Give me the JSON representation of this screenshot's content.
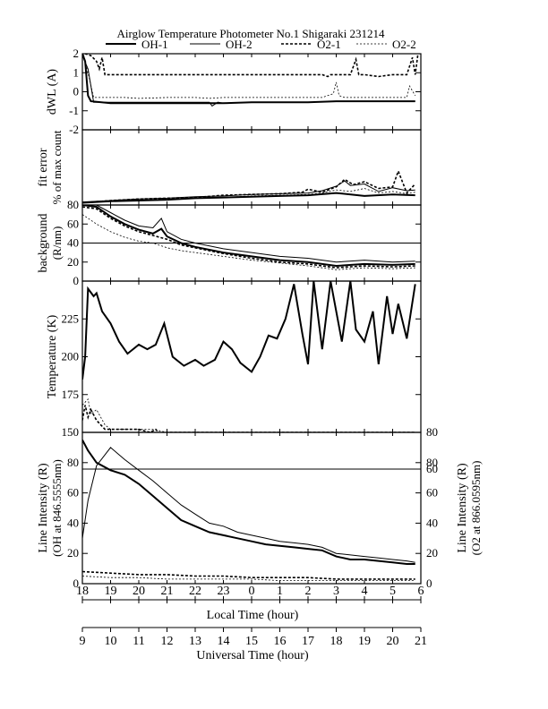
{
  "title": "Airglow Temperature Photometer No.1  Shigaraki  231214",
  "legend": [
    {
      "name": "OH-1",
      "style": "solid-thick"
    },
    {
      "name": "OH-2",
      "style": "solid-thin"
    },
    {
      "name": "O2-1",
      "style": "dashed-thick"
    },
    {
      "name": "O2-2",
      "style": "dashed-thin"
    }
  ],
  "xaxis_top": {
    "label": "Local Time (hour)",
    "ticks": [
      "18",
      "19",
      "20",
      "21",
      "22",
      "23",
      "0",
      "1",
      "2",
      "3",
      "4",
      "5",
      "6"
    ]
  },
  "xaxis_bottom": {
    "label": "Universal Time (hour)",
    "ticks": [
      "9",
      "10",
      "11",
      "12",
      "13",
      "14",
      "15",
      "16",
      "17",
      "18",
      "19",
      "20",
      "21"
    ]
  },
  "chart_data": [
    {
      "type": "line",
      "ylabel": "dWL (A)",
      "ylim": [
        -2,
        2
      ],
      "yticks": [
        "-2",
        "-1",
        "0",
        "1",
        "2"
      ],
      "x_unit": "universal time (hour)",
      "series": [
        {
          "name": "OH-1",
          "x": [
            9.0,
            9.1,
            9.2,
            9.3,
            10,
            11,
            12,
            13,
            13.5,
            14,
            15,
            16,
            17,
            18,
            19,
            20,
            20.8
          ],
          "y": [
            2.0,
            1.6,
            -0.2,
            -0.5,
            -0.6,
            -0.6,
            -0.6,
            -0.6,
            -0.6,
            -0.6,
            -0.55,
            -0.55,
            -0.55,
            -0.5,
            -0.5,
            -0.5,
            -0.5
          ]
        },
        {
          "name": "O2-1",
          "x": [
            9.0,
            9.1,
            9.3,
            9.5,
            9.6,
            9.7,
            9.8,
            10,
            11,
            12,
            13,
            14,
            15,
            16,
            17,
            17.5,
            17.7,
            17.8,
            18,
            18.5,
            18.7,
            18.8,
            19,
            19.5,
            20,
            20.5,
            20.7,
            20.8,
            20.9
          ],
          "y": [
            1.8,
            2.0,
            1.9,
            1.6,
            1.2,
            1.8,
            0.9,
            0.9,
            0.9,
            0.9,
            0.9,
            0.9,
            0.9,
            0.9,
            0.9,
            0.9,
            0.8,
            0.9,
            0.9,
            0.9,
            1.7,
            0.9,
            0.9,
            0.8,
            0.9,
            0.9,
            1.8,
            0.9,
            2.0
          ]
        },
        {
          "name": "O2-2",
          "x": [
            9.0,
            9.2,
            9.4,
            9.6,
            10,
            10.5,
            11,
            12,
            13,
            13.5,
            14,
            15,
            16,
            17,
            17.5,
            17.9,
            18,
            18.1,
            18.3,
            18.5,
            19,
            20,
            20.5,
            20.6,
            20.8
          ],
          "y": [
            2.0,
            1.0,
            -0.3,
            -0.3,
            -0.3,
            -0.3,
            -0.35,
            -0.3,
            -0.3,
            -0.35,
            -0.3,
            -0.3,
            -0.3,
            -0.3,
            -0.3,
            -0.1,
            0.5,
            -0.2,
            -0.3,
            -0.3,
            -0.3,
            -0.3,
            -0.3,
            0.3,
            -0.2
          ]
        },
        {
          "name": "OH-2",
          "x": [
            9.0,
            9.2,
            9.4,
            10,
            11,
            12,
            13,
            13.5,
            13.6,
            13.8,
            14,
            15,
            16,
            17,
            18,
            19,
            20,
            20.8
          ],
          "y": [
            1.9,
            1.2,
            -0.55,
            -0.55,
            -0.55,
            -0.55,
            -0.55,
            -0.55,
            -0.75,
            -0.55,
            -0.6,
            -0.55,
            -0.55,
            -0.55,
            -0.5,
            -0.5,
            -0.5,
            -0.5
          ]
        }
      ]
    },
    {
      "type": "line",
      "ylabel": "fit error",
      "ylabel2": "% of max count",
      "ylim": [
        0,
        10
      ],
      "yticks": [],
      "x_unit": "universal time (hour)",
      "series": [
        {
          "name": "OH-1",
          "x": [
            9,
            10,
            11,
            12,
            13,
            14,
            15,
            16,
            17,
            18,
            19,
            20,
            20.8
          ],
          "y": [
            0.3,
            0.5,
            0.6,
            0.7,
            0.9,
            1.0,
            1.1,
            1.2,
            1.3,
            1.6,
            1.2,
            1.4,
            1.3
          ]
        },
        {
          "name": "OH-2",
          "x": [
            9,
            10,
            11,
            12,
            13,
            14,
            15,
            16,
            17,
            17.5,
            18,
            18.3,
            18.5,
            19,
            19.5,
            20,
            20.5,
            20.8
          ],
          "y": [
            0.4,
            0.6,
            0.8,
            0.9,
            1.1,
            1.2,
            1.4,
            1.5,
            1.6,
            1.9,
            2.5,
            3.2,
            2.6,
            2.8,
            1.8,
            2.3,
            1.9,
            2.0
          ]
        },
        {
          "name": "O2-1",
          "x": [
            9,
            10,
            11,
            12,
            13,
            14,
            15,
            16,
            16.8,
            17,
            17.5,
            18,
            18.3,
            18.6,
            19,
            19.5,
            20,
            20.2,
            20.5,
            20.8
          ],
          "y": [
            0.3,
            0.6,
            0.8,
            0.9,
            1.0,
            1.3,
            1.4,
            1.5,
            1.7,
            2.1,
            1.7,
            2.4,
            3.4,
            2.7,
            3.1,
            2.2,
            2.4,
            4.5,
            1.6,
            2.8
          ]
        },
        {
          "name": "O2-2",
          "x": [
            9,
            10,
            11,
            12,
            13,
            14,
            15,
            16,
            17,
            17.5,
            18,
            18.5,
            19,
            19.5,
            20,
            20.5,
            20.8
          ],
          "y": [
            0.3,
            0.5,
            0.6,
            0.8,
            0.9,
            1.0,
            1.2,
            1.3,
            1.4,
            1.6,
            2.0,
            1.8,
            2.2,
            1.6,
            1.8,
            1.5,
            1.7
          ]
        }
      ]
    },
    {
      "type": "line",
      "ylabel": "background",
      "ylabel2": "(R/nm)",
      "ylim": [
        0,
        80
      ],
      "yticks": [
        "0",
        "20",
        "40",
        "60",
        "80"
      ],
      "x_unit": "universal time (hour)",
      "series": [
        {
          "name": "OH-1",
          "x": [
            9,
            9.5,
            10,
            10.5,
            11,
            11.5,
            11.8,
            12,
            12.5,
            13,
            14,
            15,
            16,
            17,
            18,
            19,
            20,
            20.8
          ],
          "y": [
            80,
            78,
            68,
            60,
            54,
            50,
            55,
            47,
            40,
            36,
            30,
            26,
            22,
            20,
            16,
            18,
            17,
            18
          ]
        },
        {
          "name": "OH-2",
          "x": [
            9,
            9.5,
            10,
            10.5,
            11,
            11.5,
            11.8,
            12,
            12.5,
            13,
            14,
            15,
            16,
            17,
            18,
            19,
            20,
            20.8
          ],
          "y": [
            80,
            80,
            72,
            64,
            58,
            56,
            66,
            52,
            44,
            40,
            34,
            30,
            26,
            24,
            20,
            22,
            20,
            21
          ]
        },
        {
          "name": "O2-1",
          "x": [
            9,
            9.5,
            10,
            10.5,
            11,
            11.5,
            12,
            12.5,
            13,
            14,
            15,
            16,
            17,
            18,
            19,
            20,
            20.8
          ],
          "y": [
            78,
            76,
            66,
            58,
            52,
            48,
            44,
            38,
            35,
            29,
            24,
            20,
            18,
            14,
            16,
            15,
            16
          ]
        },
        {
          "name": "O2-2",
          "x": [
            9,
            9.5,
            10,
            10.5,
            11,
            11.5,
            12,
            12.5,
            13,
            14,
            15,
            16,
            17,
            18,
            19,
            20,
            20.8
          ],
          "y": [
            70,
            60,
            52,
            46,
            42,
            40,
            35,
            32,
            30,
            26,
            22,
            19,
            16,
            12,
            14,
            13,
            14
          ]
        }
      ]
    },
    {
      "type": "line",
      "ylabel": "Temperature (K)",
      "ylim": [
        150,
        250
      ],
      "yticks": [
        "150",
        "175",
        "200",
        "225"
      ],
      "x_unit": "universal time (hour)",
      "series": [
        {
          "name": "OH-1",
          "x": [
            9.0,
            9.1,
            9.2,
            9.4,
            9.5,
            9.7,
            10,
            10.3,
            10.6,
            11,
            11.3,
            11.6,
            11.9,
            12.2,
            12.6,
            13,
            13.3,
            13.7,
            14,
            14.3,
            14.6,
            15,
            15.3,
            15.6,
            15.9,
            16.2,
            16.5,
            16.8,
            17.0,
            17.2,
            17.5,
            17.8,
            18,
            18.2,
            18.5,
            18.7,
            19,
            19.3,
            19.5,
            19.8,
            20,
            20.2,
            20.5,
            20.8
          ],
          "y": [
            185,
            200,
            245,
            240,
            242,
            230,
            222,
            210,
            202,
            208,
            205,
            208,
            222,
            200,
            194,
            198,
            194,
            198,
            210,
            205,
            196,
            190,
            200,
            214,
            212,
            225,
            248,
            215,
            195,
            250,
            205,
            250,
            230,
            210,
            250,
            218,
            210,
            230,
            195,
            240,
            215,
            235,
            212,
            248
          ]
        },
        {
          "name": "O2-1",
          "x": [
            9.0,
            9.1,
            9.2,
            9.3,
            9.5,
            9.8,
            10,
            10.5,
            11,
            11.4,
            11.6,
            11.8,
            12,
            12.5,
            13,
            13.3,
            13.5,
            14,
            14.5,
            15,
            15.5,
            16,
            16.5,
            16.8,
            17.0,
            17.1,
            17.3,
            17.5,
            17.8,
            18.0,
            18.2,
            18.5,
            18.8,
            19,
            19.3,
            19.5,
            19.8,
            20,
            20.2,
            20.4,
            20.6,
            20.8
          ],
          "y": [
            158,
            168,
            160,
            165,
            158,
            152,
            152,
            152,
            152,
            150,
            152,
            148,
            150,
            150,
            150,
            150,
            150,
            150,
            150,
            150,
            150,
            150,
            150,
            150,
            150,
            150,
            150,
            150,
            150,
            150,
            150,
            150,
            150,
            150,
            150,
            150,
            150,
            150,
            150,
            150,
            150,
            150
          ]
        },
        {
          "name": "O2-2",
          "x": [
            9.0,
            9.2,
            9.3,
            9.5,
            9.8,
            10,
            10.5,
            11,
            11.5,
            12,
            12.5,
            13,
            13.5,
            14,
            14.5,
            15,
            15.5,
            16,
            16.5,
            16.8,
            17.0,
            17.2,
            17.5,
            17.8,
            18,
            18.3,
            18.6,
            19,
            19.3,
            19.5,
            19.8,
            20,
            20.2,
            20.4,
            20.6,
            20.8
          ],
          "y": [
            168,
            172,
            162,
            165,
            155,
            152,
            152,
            152,
            152,
            150,
            150,
            150,
            150,
            150,
            150,
            150,
            150,
            150,
            150,
            150,
            150,
            150,
            150,
            150,
            150,
            150,
            150,
            150,
            150,
            150,
            150,
            150,
            150,
            150,
            150,
            150
          ]
        }
      ]
    },
    {
      "type": "line",
      "ylabel": "Line Intensity (R)",
      "ylabel2": "(OH at 846.5555nm)",
      "ylabel_right": "Line Intensity (R)",
      "ylabel_right2": "(O2 at 866.0595nm)",
      "ylim": [
        0,
        100
      ],
      "yticks": [
        "0",
        "20",
        "40",
        "60",
        "80"
      ],
      "yticks_right": [
        "0",
        "20",
        "40",
        "60",
        "80"
      ],
      "x_unit": "universal time (hour)",
      "series": [
        {
          "name": "OH-1",
          "x": [
            9,
            9.2,
            9.5,
            10,
            10.5,
            11,
            11.5,
            12,
            12.5,
            13,
            13.5,
            14,
            14.5,
            15,
            15.5,
            16,
            16.5,
            17,
            17.5,
            18,
            18.5,
            19,
            19.5,
            20,
            20.5,
            20.8
          ],
          "y": [
            95,
            88,
            80,
            75,
            72,
            66,
            58,
            50,
            42,
            38,
            34,
            32,
            30,
            28,
            26,
            25,
            24,
            23,
            22,
            18,
            16,
            16,
            15,
            14,
            13,
            13
          ]
        },
        {
          "name": "OH-2",
          "x": [
            9,
            9.2,
            9.5,
            10,
            10.5,
            11,
            11.5,
            12,
            12.5,
            13,
            13.5,
            14,
            14.5,
            15,
            15.5,
            16,
            16.5,
            17,
            17.5,
            18,
            18.5,
            19,
            19.5,
            20,
            20.5,
            20.8
          ],
          "y": [
            30,
            55,
            78,
            90,
            82,
            75,
            68,
            60,
            52,
            46,
            40,
            38,
            34,
            32,
            30,
            28,
            27,
            26,
            24,
            20,
            19,
            18,
            17,
            16,
            15,
            14
          ]
        },
        {
          "name": "O2-1",
          "x": [
            9,
            10,
            11,
            12,
            13,
            14,
            15,
            16,
            17,
            18,
            19,
            20,
            20.8
          ],
          "y": [
            8,
            7,
            6,
            6,
            5,
            5,
            4,
            4,
            4,
            3,
            3,
            3,
            3
          ]
        },
        {
          "name": "O2-2",
          "x": [
            9,
            10,
            11,
            12,
            13,
            14,
            15,
            16,
            17,
            18,
            19,
            20,
            20.8
          ],
          "y": [
            5,
            4,
            4,
            3,
            3,
            3,
            3,
            2,
            2,
            2,
            2,
            2,
            2
          ]
        }
      ]
    }
  ]
}
